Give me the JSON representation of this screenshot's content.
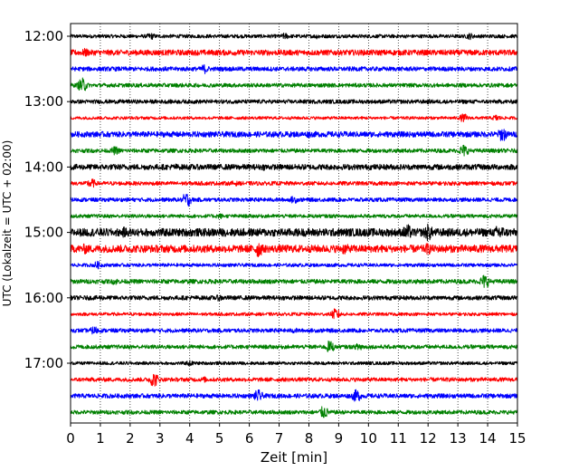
{
  "chart_data": {
    "type": "line",
    "title": "",
    "xlabel": "Zeit  [min]",
    "ylabel": "UTC (Lokalzeit = UTC + 02:00)",
    "xlim": [
      0,
      15
    ],
    "x_ticks": [
      "0",
      "1",
      "2",
      "3",
      "4",
      "5",
      "6",
      "7",
      "8",
      "9",
      "10",
      "11",
      "12",
      "13",
      "14",
      "15"
    ],
    "y_hour_labels": [
      "12:00",
      "13:00",
      "14:00",
      "15:00",
      "16:00",
      "17:00"
    ],
    "grid": "vertical-dotted",
    "trace_interval_min": 15,
    "colors": [
      "#000000",
      "#ff0000",
      "#0000ff",
      "#008000"
    ],
    "traces": [
      {
        "start": "12:00",
        "color": "#000000",
        "amplitude": 0.18,
        "events": [
          {
            "t": 2.7,
            "amp": 0.35
          },
          {
            "t": 7.2,
            "amp": 0.35
          },
          {
            "t": 8.3,
            "amp": 0.3
          },
          {
            "t": 13.4,
            "amp": 0.35
          }
        ]
      },
      {
        "start": "12:15",
        "color": "#ff0000",
        "amplitude": 0.28,
        "events": [
          {
            "t": 0.5,
            "amp": 0.45
          },
          {
            "t": 12.8,
            "amp": 0.3
          }
        ]
      },
      {
        "start": "12:30",
        "color": "#0000ff",
        "amplitude": 0.22,
        "events": [
          {
            "t": 4.5,
            "amp": 0.5
          }
        ]
      },
      {
        "start": "12:45",
        "color": "#008000",
        "amplitude": 0.2,
        "events": [
          {
            "t": 0.4,
            "amp": 0.75
          }
        ]
      },
      {
        "start": "13:00",
        "color": "#000000",
        "amplitude": 0.2,
        "events": [
          {
            "t": 12.0,
            "amp": 0.25
          }
        ]
      },
      {
        "start": "13:15",
        "color": "#ff0000",
        "amplitude": 0.15,
        "events": [
          {
            "t": 13.2,
            "amp": 0.45
          },
          {
            "t": 14.3,
            "amp": 0.35
          }
        ]
      },
      {
        "start": "13:30",
        "color": "#0000ff",
        "amplitude": 0.28,
        "events": [
          {
            "t": 8.0,
            "amp": 0.35
          },
          {
            "t": 13.0,
            "amp": 0.3
          },
          {
            "t": 14.5,
            "amp": 0.75
          }
        ]
      },
      {
        "start": "13:45",
        "color": "#008000",
        "amplitude": 0.2,
        "events": [
          {
            "t": 1.5,
            "amp": 0.45
          },
          {
            "t": 13.2,
            "amp": 0.65
          }
        ]
      },
      {
        "start": "14:00",
        "color": "#000000",
        "amplitude": 0.28,
        "events": [
          {
            "t": 3.5,
            "amp": 0.35
          },
          {
            "t": 6.5,
            "amp": 0.35
          }
        ]
      },
      {
        "start": "14:15",
        "color": "#ff0000",
        "amplitude": 0.2,
        "events": [
          {
            "t": 0.7,
            "amp": 0.5
          },
          {
            "t": 5.5,
            "amp": 0.3
          }
        ]
      },
      {
        "start": "14:30",
        "color": "#0000ff",
        "amplitude": 0.2,
        "events": [
          {
            "t": 3.9,
            "amp": 0.75
          },
          {
            "t": 7.5,
            "amp": 0.4
          }
        ]
      },
      {
        "start": "14:45",
        "color": "#008000",
        "amplitude": 0.18,
        "events": [
          {
            "t": 5.0,
            "amp": 0.3
          }
        ]
      },
      {
        "start": "15:00",
        "color": "#000000",
        "amplitude": 0.4,
        "events": [
          {
            "t": 1.8,
            "amp": 0.55
          },
          {
            "t": 11.3,
            "amp": 0.85
          },
          {
            "t": 12.0,
            "amp": 0.9
          },
          {
            "t": 14.4,
            "amp": 0.9
          }
        ]
      },
      {
        "start": "15:15",
        "color": "#ff0000",
        "amplitude": 0.38,
        "events": [
          {
            "t": 0.5,
            "amp": 0.55
          },
          {
            "t": 6.3,
            "amp": 0.9
          },
          {
            "t": 9.2,
            "amp": 0.6
          },
          {
            "t": 12.0,
            "amp": 0.6
          }
        ]
      },
      {
        "start": "15:30",
        "color": "#0000ff",
        "amplitude": 0.17,
        "events": [
          {
            "t": 0.9,
            "amp": 0.4
          }
        ]
      },
      {
        "start": "15:45",
        "color": "#008000",
        "amplitude": 0.22,
        "events": [
          {
            "t": 1.5,
            "amp": 0.35
          },
          {
            "t": 13.9,
            "amp": 0.75
          }
        ]
      },
      {
        "start": "16:00",
        "color": "#000000",
        "amplitude": 0.22,
        "events": [
          {
            "t": 1.0,
            "amp": 0.3
          },
          {
            "t": 5.0,
            "amp": 0.35
          }
        ]
      },
      {
        "start": "16:15",
        "color": "#ff0000",
        "amplitude": 0.16,
        "events": [
          {
            "t": 8.9,
            "amp": 0.6
          }
        ]
      },
      {
        "start": "16:30",
        "color": "#0000ff",
        "amplitude": 0.2,
        "events": [
          {
            "t": 0.8,
            "amp": 0.45
          },
          {
            "t": 7.5,
            "amp": 0.3
          }
        ]
      },
      {
        "start": "16:45",
        "color": "#008000",
        "amplitude": 0.2,
        "events": [
          {
            "t": 8.7,
            "amp": 0.65
          },
          {
            "t": 9.7,
            "amp": 0.45
          }
        ]
      },
      {
        "start": "17:00",
        "color": "#000000",
        "amplitude": 0.16,
        "events": [
          {
            "t": 4.0,
            "amp": 0.3
          }
        ]
      },
      {
        "start": "17:15",
        "color": "#ff0000",
        "amplitude": 0.2,
        "events": [
          {
            "t": 2.8,
            "amp": 0.75
          },
          {
            "t": 4.5,
            "amp": 0.3
          }
        ]
      },
      {
        "start": "17:30",
        "color": "#0000ff",
        "amplitude": 0.22,
        "events": [
          {
            "t": 6.3,
            "amp": 0.65
          },
          {
            "t": 9.6,
            "amp": 0.65
          }
        ]
      },
      {
        "start": "17:45",
        "color": "#008000",
        "amplitude": 0.2,
        "events": [
          {
            "t": 8.5,
            "amp": 0.65
          }
        ]
      }
    ]
  }
}
